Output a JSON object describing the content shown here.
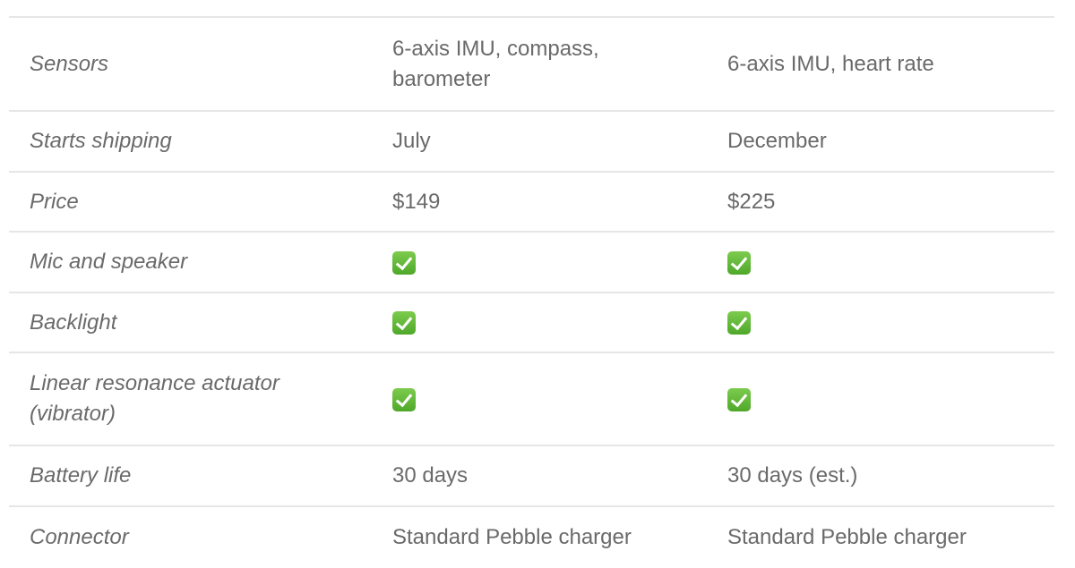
{
  "rows": [
    {
      "label": "Sensors",
      "a": "6-axis IMU, compass, barometer",
      "b": "6-axis IMU, heart rate"
    },
    {
      "label": "Starts shipping",
      "a": "July",
      "b": "December"
    },
    {
      "label": "Price",
      "a": "$149",
      "b": "$225"
    },
    {
      "label": "Mic and speaker",
      "a_check": true,
      "b_check": true
    },
    {
      "label": "Backlight",
      "a_check": true,
      "b_check": true
    },
    {
      "label": "Linear resonance actuator (vibrator)",
      "a_check": true,
      "b_check": true
    },
    {
      "label": "Battery life",
      "a": "30 days",
      "b": "30 days (est.)"
    },
    {
      "label": "Connector",
      "a": "Standard Pebble charger",
      "b": "Standard Pebble charger"
    }
  ],
  "icons": {
    "check": "check-mark-button-icon"
  },
  "colors": {
    "check": "#5cb536",
    "text": "#6a6a6a",
    "divider": "#e6e6e6"
  }
}
